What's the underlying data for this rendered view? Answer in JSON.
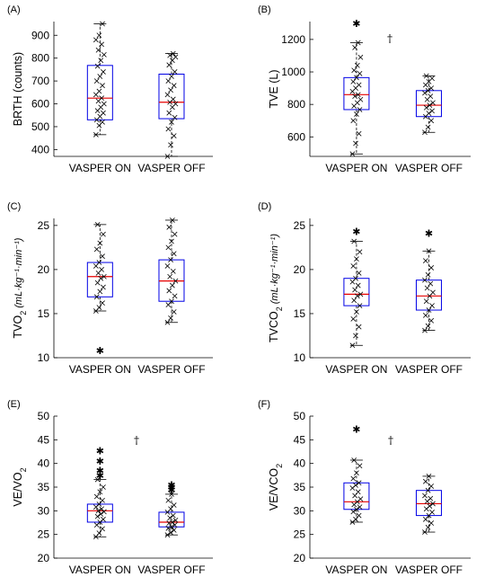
{
  "chart_data": [
    {
      "type": "box",
      "panel_label": "(A)",
      "ylabel": "BRTH (counts)",
      "ylabel_sub": "",
      "ylabel_unit": "",
      "ylim": [
        370,
        960
      ],
      "yticks": [
        400,
        500,
        600,
        700,
        800,
        900
      ],
      "categories": [
        "VASPER ON",
        "VASPER OFF"
      ],
      "annotation": "",
      "boxes": [
        {
          "q1": 530,
          "median": 625,
          "q3": 768,
          "whisker_low": 465,
          "whisker_high": 950,
          "outliers": [],
          "points": [
            465,
            505,
            520,
            530,
            545,
            560,
            570,
            585,
            600,
            612,
            625,
            640,
            655,
            680,
            700,
            720,
            740,
            765,
            790,
            815,
            835,
            860,
            880,
            900,
            950
          ]
        },
        {
          "q1": 535,
          "median": 607,
          "q3": 730,
          "whisker_low": 370,
          "whisker_high": 820,
          "outliers": [],
          "points": [
            370,
            420,
            460,
            490,
            520,
            540,
            560,
            585,
            600,
            607,
            620,
            640,
            660,
            680,
            700,
            720,
            740,
            770,
            790,
            805,
            812,
            820
          ]
        }
      ]
    },
    {
      "type": "box",
      "panel_label": "(B)",
      "ylabel": "TVE (L)",
      "ylabel_sub": "",
      "ylabel_unit": "",
      "ylim": [
        480,
        1310
      ],
      "yticks": [
        600,
        800,
        1000,
        1200
      ],
      "categories": [
        "VASPER ON",
        "VASPER OFF"
      ],
      "annotation": "†",
      "boxes": [
        {
          "q1": 768,
          "median": 860,
          "q3": 965,
          "whisker_low": 495,
          "whisker_high": 1180,
          "outliers": [
            1300
          ],
          "points": [
            495,
            560,
            620,
            700,
            740,
            768,
            790,
            810,
            830,
            850,
            860,
            880,
            900,
            920,
            940,
            965,
            990,
            1010,
            1040,
            1090,
            1150,
            1180
          ]
        },
        {
          "q1": 725,
          "median": 795,
          "q3": 885,
          "whisker_low": 628,
          "whisker_high": 975,
          "outliers": [],
          "points": [
            628,
            660,
            700,
            725,
            745,
            760,
            780,
            795,
            810,
            830,
            850,
            870,
            885,
            900,
            920,
            940,
            960,
            975
          ]
        }
      ]
    },
    {
      "type": "box",
      "panel_label": "(C)",
      "ylabel": "TVO",
      "ylabel_sub": "2",
      "ylabel_unit": "(mL·kg⁻¹·min⁻¹)",
      "ylim": [
        10,
        25.8
      ],
      "yticks": [
        10,
        15,
        20,
        25
      ],
      "categories": [
        "VASPER ON",
        "VASPER OFF"
      ],
      "annotation": "",
      "boxes": [
        {
          "q1": 16.9,
          "median": 19.2,
          "q3": 20.8,
          "whisker_low": 15.3,
          "whisker_high": 25.1,
          "outliers": [
            10.8
          ],
          "points": [
            15.3,
            15.7,
            16.2,
            16.9,
            17.5,
            18.0,
            18.5,
            19.0,
            19.2,
            19.6,
            20.0,
            20.4,
            20.8,
            21.5,
            22.3,
            23.0,
            24.0,
            25.1
          ]
        },
        {
          "q1": 16.4,
          "median": 18.7,
          "q3": 21.1,
          "whisker_low": 14.0,
          "whisker_high": 25.6,
          "outliers": [],
          "points": [
            14.0,
            14.5,
            15.2,
            16.0,
            16.4,
            17.0,
            17.6,
            18.2,
            18.7,
            19.2,
            19.8,
            20.4,
            21.1,
            21.8,
            22.5,
            23.2,
            24.0,
            24.8,
            25.6
          ]
        }
      ]
    },
    {
      "type": "box",
      "panel_label": "(D)",
      "ylabel": "TVCO",
      "ylabel_sub": "2",
      "ylabel_unit": "(mL·kg⁻¹·min⁻¹)",
      "ylim": [
        10,
        25.8
      ],
      "yticks": [
        10,
        15,
        20,
        25
      ],
      "categories": [
        "VASPER ON",
        "VASPER OFF"
      ],
      "annotation": "",
      "boxes": [
        {
          "q1": 15.9,
          "median": 17.2,
          "q3": 19.0,
          "whisker_low": 11.4,
          "whisker_high": 23.2,
          "outliers": [
            24.3
          ],
          "points": [
            11.4,
            12.5,
            13.5,
            14.4,
            15.2,
            15.9,
            16.5,
            17.0,
            17.2,
            17.7,
            18.2,
            18.6,
            19.0,
            19.6,
            20.4,
            21.2,
            22.0,
            23.2
          ]
        },
        {
          "q1": 15.4,
          "median": 17.0,
          "q3": 18.8,
          "whisker_low": 13.1,
          "whisker_high": 22.1,
          "outliers": [
            24.1
          ],
          "points": [
            13.1,
            13.6,
            14.2,
            14.8,
            15.4,
            15.9,
            16.4,
            17.0,
            17.4,
            17.9,
            18.4,
            18.8,
            19.4,
            20.2,
            21.0,
            22.1
          ]
        }
      ]
    },
    {
      "type": "box",
      "panel_label": "(E)",
      "ylabel": "VE/VO",
      "ylabel_sub": "2",
      "ylabel_unit": "",
      "ylim": [
        20,
        50
      ],
      "yticks": [
        20,
        25,
        30,
        35,
        40,
        45,
        50
      ],
      "categories": [
        "VASPER ON",
        "VASPER OFF"
      ],
      "annotation": "†",
      "boxes": [
        {
          "q1": 27.6,
          "median": 30.0,
          "q3": 31.4,
          "whisker_low": 24.5,
          "whisker_high": 36.6,
          "outliers": [
            37.5,
            38.5,
            40.5,
            42.7
          ],
          "points": [
            24.5,
            25.3,
            26.2,
            27.0,
            27.6,
            28.2,
            28.8,
            29.3,
            29.8,
            30.0,
            30.4,
            30.8,
            31.4,
            32.2,
            33.0,
            34.0,
            35.0,
            36.6
          ]
        },
        {
          "q1": 26.6,
          "median": 27.6,
          "q3": 29.7,
          "whisker_low": 24.9,
          "whisker_high": 33.5,
          "outliers": [
            34.4,
            35.0,
            35.5
          ],
          "points": [
            24.9,
            25.4,
            25.9,
            26.3,
            26.6,
            27.0,
            27.4,
            27.6,
            28.0,
            28.5,
            29.0,
            29.7,
            30.4,
            31.2,
            32.2,
            33.5
          ]
        }
      ]
    },
    {
      "type": "box",
      "panel_label": "(F)",
      "ylabel": "VE/VCO",
      "ylabel_sub": "2",
      "ylabel_unit": "",
      "ylim": [
        20,
        50
      ],
      "yticks": [
        20,
        25,
        30,
        35,
        40,
        45,
        50
      ],
      "categories": [
        "VASPER ON",
        "VASPER OFF"
      ],
      "annotation": "†",
      "boxes": [
        {
          "q1": 30.3,
          "median": 31.9,
          "q3": 35.9,
          "whisker_low": 27.6,
          "whisker_high": 40.7,
          "outliers": [
            47.2
          ],
          "points": [
            27.6,
            28.2,
            29.0,
            29.8,
            30.3,
            30.8,
            31.3,
            31.9,
            32.5,
            33.2,
            34.0,
            34.8,
            35.4,
            35.9,
            36.8,
            38.0,
            39.5,
            40.7
          ]
        },
        {
          "q1": 29.0,
          "median": 31.5,
          "q3": 34.3,
          "whisker_low": 25.5,
          "whisker_high": 37.3,
          "outliers": [],
          "points": [
            25.5,
            26.5,
            27.4,
            28.2,
            29.0,
            29.7,
            30.4,
            31.0,
            31.5,
            32.0,
            32.6,
            33.2,
            34.3,
            35.2,
            36.2,
            37.3
          ]
        }
      ]
    }
  ]
}
